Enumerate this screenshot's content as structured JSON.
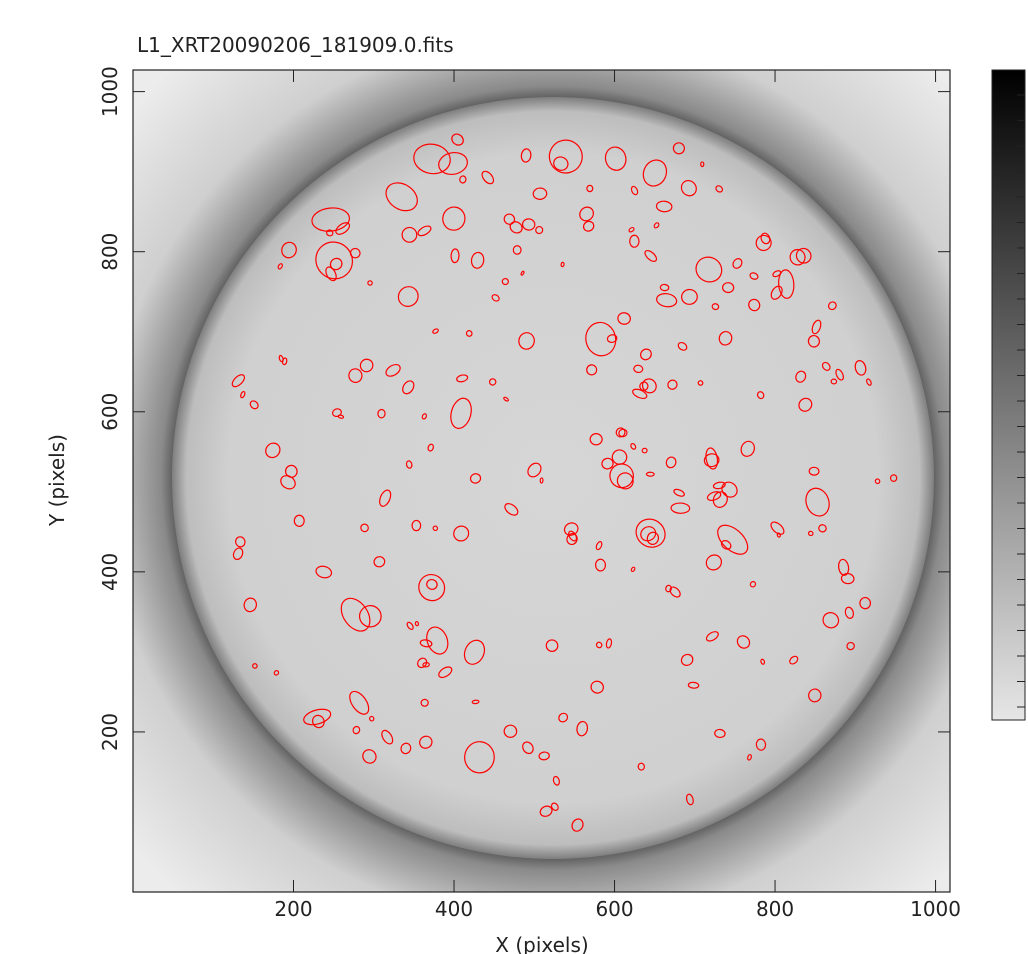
{
  "chart_data": {
    "type": "image",
    "title": "L1_XRT20090206_181909.0.fits",
    "x_label": "X (pixels)",
    "y_label": "Y (pixels)",
    "xlim": [
      0,
      1018
    ],
    "ylim": [
      0,
      1027
    ],
    "xticks": [
      200,
      400,
      600,
      800,
      1000
    ],
    "yticks": [
      200,
      400,
      600,
      800,
      1000
    ],
    "region_color": "#ff0000"
  }
}
